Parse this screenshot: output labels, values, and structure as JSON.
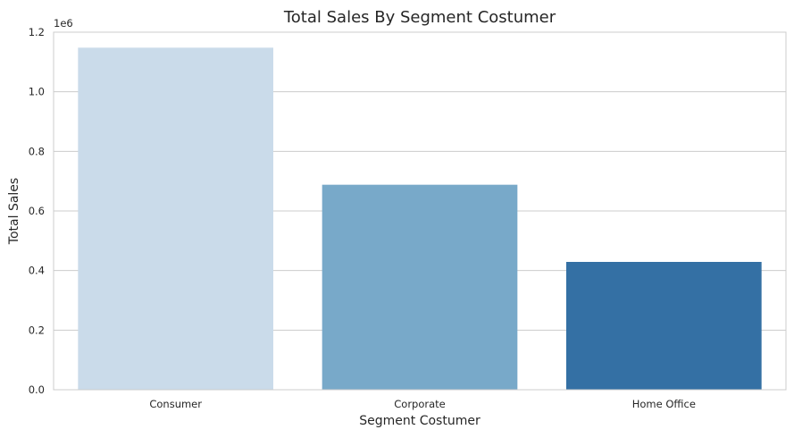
{
  "chart_data": {
    "type": "bar",
    "title": "Total Sales By Segment Costumer",
    "xlabel": "Segment Costumer",
    "ylabel": "Total Sales",
    "y_offset_label": "1e6",
    "categories": [
      "Consumer",
      "Corporate",
      "Home Office"
    ],
    "values": [
      1148000,
      688000,
      429000
    ],
    "colors": [
      "#cadbea",
      "#78a9c9",
      "#3470a4"
    ],
    "ylim": [
      0,
      1200000
    ],
    "yticks": [
      0,
      200000,
      400000,
      600000,
      800000,
      1000000,
      1200000
    ],
    "ytick_labels": [
      "0.0",
      "0.2",
      "0.4",
      "0.6",
      "0.8",
      "1.0",
      "1.2"
    ],
    "grid": true,
    "gridColor": "#cccccc",
    "axisColor": "#cccccc"
  }
}
